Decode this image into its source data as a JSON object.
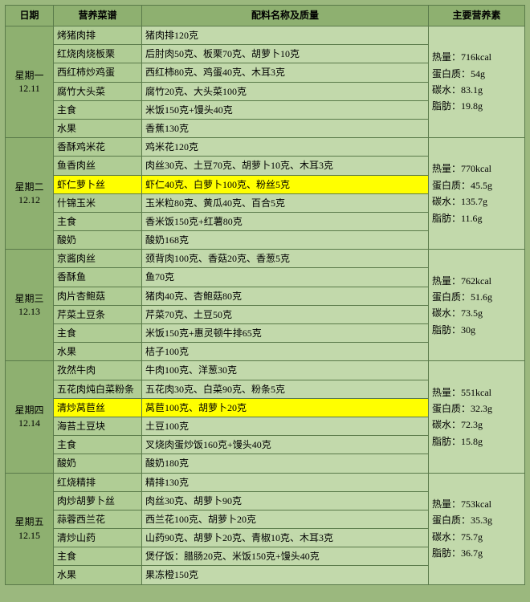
{
  "headers": {
    "date": "日期",
    "menu": "营养菜谱",
    "ingredients": "配料名称及质量",
    "nutrition": "主要营养素"
  },
  "colors": {
    "page_bg": "#9bb87e",
    "header_bg": "#8eb070",
    "menu_bg": "#b0cd95",
    "ing_bg": "#c2d9ab",
    "border": "#5a7a4a",
    "highlight": "#ffff00"
  },
  "days": [
    {
      "day_label_1": "星期一",
      "day_label_2": "12.11",
      "nutrition": "热量：716kcal\n蛋白质：54g\n碳水：83.1g\n脂肪：19.8g",
      "rows": [
        {
          "menu": "烤猪肉排",
          "ing": "猪肉排120克",
          "hl": false
        },
        {
          "menu": "红烧肉烧板栗",
          "ing": "后肘肉50克、板栗70克、胡萝卜10克",
          "hl": false
        },
        {
          "menu": "西红柿炒鸡蛋",
          "ing": "西红柿80克、鸡蛋40克、木耳3克",
          "hl": false
        },
        {
          "menu": "腐竹大头菜",
          "ing": "腐竹20克、大头菜100克",
          "hl": false
        },
        {
          "menu": "主食",
          "ing": "米饭150克+馒头40克",
          "hl": false
        },
        {
          "menu": "水果",
          "ing": "香蕉130克",
          "hl": false
        }
      ]
    },
    {
      "day_label_1": "星期二",
      "day_label_2": "12.12",
      "nutrition": "热量：770kcal\n蛋白质：45.5g\n碳水：135.7g\n脂肪：11.6g",
      "rows": [
        {
          "menu": "香酥鸡米花",
          "ing": "鸡米花120克",
          "hl": false
        },
        {
          "menu": "鱼香肉丝",
          "ing": "肉丝30克、土豆70克、胡萝卜10克、木耳3克",
          "hl": false
        },
        {
          "menu": "虾仁萝卜丝",
          "ing": "虾仁40克、白萝卜100克、粉丝5克",
          "hl": true
        },
        {
          "menu": "什锦玉米",
          "ing": "玉米粒80克、黄瓜40克、百合5克",
          "hl": false
        },
        {
          "menu": "主食",
          "ing": "香米饭150克+红薯80克",
          "hl": false
        },
        {
          "menu": "酸奶",
          "ing": "酸奶168克",
          "hl": false
        }
      ]
    },
    {
      "day_label_1": "星期三",
      "day_label_2": "12.13",
      "nutrition": "热量：762kcal\n蛋白质：51.6g\n碳水：73.5g\n脂肪：30g",
      "rows": [
        {
          "menu": "京酱肉丝",
          "ing": "颈背肉100克、香菇20克、香葱5克",
          "hl": false
        },
        {
          "menu": "香酥鱼",
          "ing": "鱼70克",
          "hl": false
        },
        {
          "menu": "肉片杏鲍菇",
          "ing": "猪肉40克、杏鲍菇80克",
          "hl": false
        },
        {
          "menu": "芹菜土豆条",
          "ing": "芹菜70克、土豆50克",
          "hl": false
        },
        {
          "menu": "主食",
          "ing": "米饭150克+惠灵顿牛排65克",
          "hl": false
        },
        {
          "menu": "水果",
          "ing": "桔子100克",
          "hl": false
        }
      ]
    },
    {
      "day_label_1": "星期四",
      "day_label_2": "12.14",
      "nutrition": "热量：551kcal\n蛋白质：32.3g\n碳水：72.3g\n脂肪：15.8g",
      "rows": [
        {
          "menu": "孜然牛肉",
          "ing": "牛肉100克、洋葱30克",
          "hl": false
        },
        {
          "menu": "五花肉炖白菜粉条",
          "ing": "五花肉30克、白菜90克、粉条5克",
          "hl": false
        },
        {
          "menu": "清炒莴苣丝",
          "ing": "莴苣100克、胡萝卜20克",
          "hl": true
        },
        {
          "menu": "海苔土豆块",
          "ing": "土豆100克",
          "hl": false
        },
        {
          "menu": "主食",
          "ing": "叉烧肉蛋炒饭160克+馒头40克",
          "hl": false
        },
        {
          "menu": "酸奶",
          "ing": "酸奶180克",
          "hl": false
        }
      ]
    },
    {
      "day_label_1": "星期五",
      "day_label_2": "12.15",
      "nutrition": "热量：753kcal\n蛋白质：35.3g\n碳水：75.7g\n脂肪：36.7g",
      "rows": [
        {
          "menu": "红烧精排",
          "ing": "精排130克",
          "hl": false
        },
        {
          "menu": "肉炒胡萝卜丝",
          "ing": "肉丝30克、胡萝卜90克",
          "hl": false
        },
        {
          "menu": "蒜蓉西兰花",
          "ing": "西兰花100克、胡萝卜20克",
          "hl": false
        },
        {
          "menu": "清炒山药",
          "ing": "山药90克、胡萝卜20克、青椒10克、木耳3克",
          "hl": false
        },
        {
          "menu": "主食",
          "ing": "煲仔饭：腊肠20克、米饭150克+馒头40克",
          "hl": false
        },
        {
          "menu": "水果",
          "ing": "果冻橙150克",
          "hl": false
        }
      ]
    }
  ]
}
